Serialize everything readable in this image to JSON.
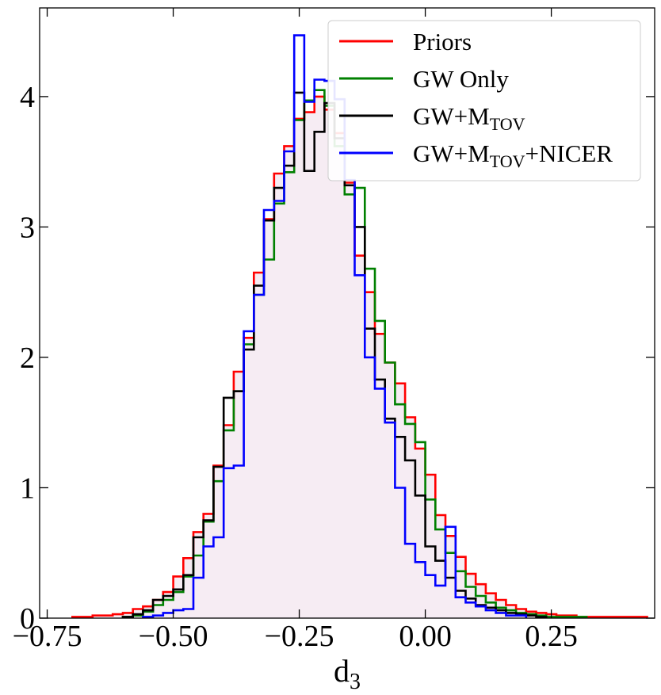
{
  "chart_data": {
    "type": "histogram",
    "xlabel": {
      "main": "d",
      "sub": "3"
    },
    "ylabel": "",
    "xlim": [
      -0.765,
      0.455
    ],
    "ylim": [
      0,
      4.68
    ],
    "x_ticks": [
      {
        "value": -0.75,
        "label": "−0.75"
      },
      {
        "value": -0.5,
        "label": "−0.50"
      },
      {
        "value": -0.25,
        "label": "−0.25"
      },
      {
        "value": 0.0,
        "label": "0.00"
      },
      {
        "value": 0.25,
        "label": "0.25"
      }
    ],
    "y_ticks": [
      {
        "value": 0,
        "label": "0"
      },
      {
        "value": 1,
        "label": "1"
      },
      {
        "value": 2,
        "label": "2"
      },
      {
        "value": 3,
        "label": "3"
      },
      {
        "value": 4,
        "label": "4"
      }
    ],
    "legend_position": "top-right",
    "series": [
      {
        "name": "Priors",
        "legend": {
          "parts": [
            {
              "t": "Priors"
            }
          ]
        },
        "color": "#ff0000",
        "fill": "#f6ecf3",
        "x_start": -0.7,
        "bin_width": 0.02,
        "values": [
          0.01,
          0.01,
          0.02,
          0.02,
          0.03,
          0.04,
          0.07,
          0.09,
          0.14,
          0.2,
          0.32,
          0.46,
          0.66,
          0.8,
          1.17,
          1.48,
          1.89,
          2.15,
          2.65,
          3.06,
          3.41,
          3.62,
          3.83,
          3.88,
          4.0,
          3.9,
          3.72,
          3.34,
          2.78,
          2.5,
          2.18,
          1.96,
          1.8,
          1.54,
          1.3,
          1.1,
          0.79,
          0.63,
          0.47,
          0.34,
          0.26,
          0.19,
          0.14,
          0.1,
          0.07,
          0.05,
          0.04,
          0.03,
          0.02,
          0.02,
          0.01,
          0.01,
          0.01,
          0.01,
          0.01,
          0.01,
          0.01
        ]
      },
      {
        "name": "GW Only",
        "legend": {
          "parts": [
            {
              "t": "GW Only"
            }
          ]
        },
        "color": "#008000",
        "x_start": -0.6,
        "bin_width": 0.02,
        "values": [
          0.01,
          0.02,
          0.05,
          0.1,
          0.14,
          0.2,
          0.32,
          0.48,
          0.74,
          1.05,
          1.44,
          1.74,
          2.1,
          2.48,
          2.75,
          3.18,
          3.42,
          3.82,
          3.97,
          4.05,
          3.93,
          3.62,
          3.25,
          3.3,
          2.68,
          2.28,
          1.96,
          1.64,
          1.49,
          1.35,
          0.91,
          0.68,
          0.5,
          0.36,
          0.24,
          0.17,
          0.12,
          0.08,
          0.06,
          0.04,
          0.03,
          0.02,
          0.01,
          0.01,
          0.01,
          0.01
        ]
      },
      {
        "name": "GW+M_TOV",
        "legend": {
          "parts": [
            {
              "t": "GW+M"
            },
            {
              "t": "TOV",
              "sub": true
            }
          ]
        },
        "color": "#000000",
        "x_start": -0.6,
        "bin_width": 0.02,
        "values": [
          0.01,
          0.03,
          0.06,
          0.14,
          0.17,
          0.22,
          0.33,
          0.62,
          0.75,
          1.16,
          1.69,
          1.74,
          2.06,
          2.55,
          3.05,
          3.3,
          3.47,
          4.03,
          3.43,
          3.73,
          3.95,
          3.68,
          3.32,
          3.0,
          2.22,
          1.83,
          1.53,
          1.39,
          1.21,
          0.94,
          0.55,
          0.44,
          0.31,
          0.21,
          0.15,
          0.1,
          0.08,
          0.06,
          0.04,
          0.03,
          0.02,
          0.01
        ]
      },
      {
        "name": "GW+M_TOV+NICER",
        "legend": {
          "parts": [
            {
              "t": "GW+M"
            },
            {
              "t": "TOV",
              "sub": true
            },
            {
              "t": "+NICER"
            }
          ]
        },
        "color": "#0000ff",
        "x_start": -0.56,
        "bin_width": 0.02,
        "values": [
          0.01,
          0.02,
          0.04,
          0.06,
          0.07,
          0.31,
          0.55,
          0.62,
          1.15,
          1.17,
          2.2,
          2.48,
          3.13,
          3.2,
          3.58,
          4.47,
          3.96,
          4.13,
          4.12,
          3.98,
          3.36,
          2.63,
          2.0,
          1.76,
          1.5,
          1.0,
          0.57,
          0.43,
          0.33,
          0.25,
          0.7,
          0.16,
          0.12,
          0.09,
          0.06,
          0.04,
          0.02,
          0.02
        ]
      }
    ]
  }
}
